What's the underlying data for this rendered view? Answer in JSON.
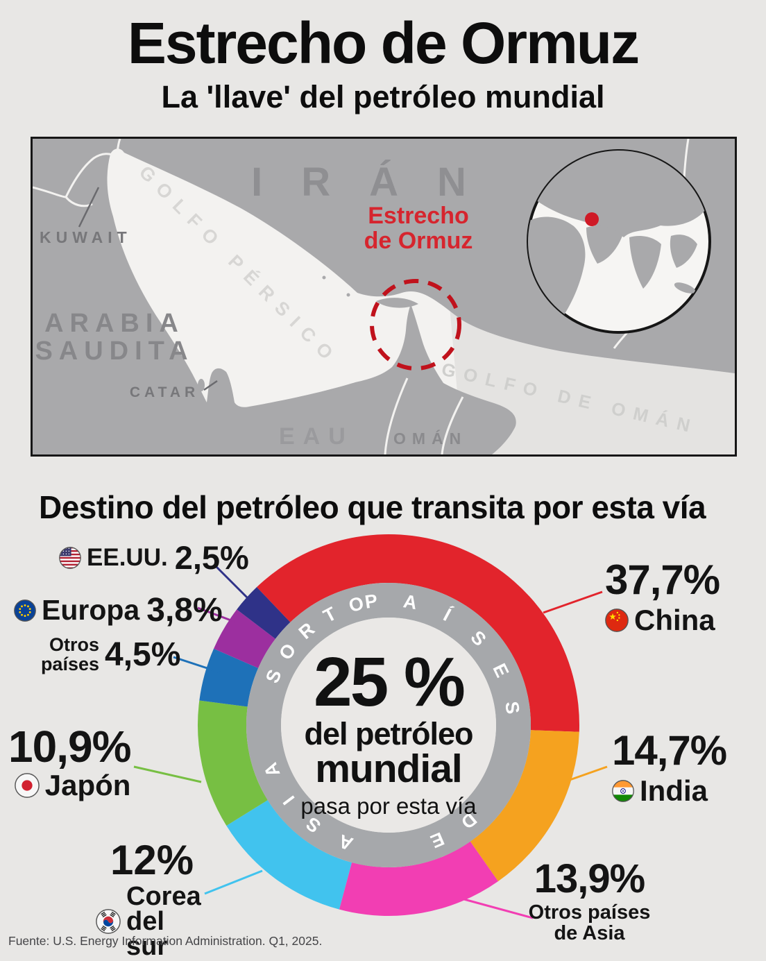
{
  "header": {
    "title": "Estrecho de Ormuz",
    "subtitle": "La 'llave' del petróleo mundial"
  },
  "map": {
    "countries": {
      "iran": "IRÁN",
      "kuwait": "KUWAIT",
      "arabia_line1": "ARABIA",
      "arabia_line2": "SAUDITA",
      "catar": "CATAR",
      "eau": "EAU",
      "oman": "OMÁN"
    },
    "seas": {
      "persian_gulf": "GOLFO PÉRSICO",
      "gulf_of_oman": "GOLFO DE OMÁN"
    },
    "strait_label_line1": "Estrecho",
    "strait_label_line2": "de Ormuz",
    "colors": {
      "land": "#a9a9ab",
      "sea": "#f3f2f0",
      "strait_red": "#d6252e",
      "dashed_circle_red": "#c0121c",
      "globe_marker_red": "#cf1a26"
    }
  },
  "section": {
    "title": "Destino del petróleo que transita por esta vía"
  },
  "chart_data": {
    "type": "donut",
    "title": "Destino del petróleo que transita por esta vía",
    "unit": "percent",
    "start_angle_deg": -43.7,
    "center": {
      "headline": "25 %",
      "line1": "del petróleo",
      "line2": "mundial",
      "line3": "pasa por esta vía"
    },
    "ring_labels": {
      "asia_group": "PAÍSES DE ASIA",
      "others_group": "OTROS"
    },
    "ring_color": "#a6a8ab",
    "series": [
      {
        "label": "China",
        "value": 37.7,
        "display": "37,7%",
        "color": "#e2242c",
        "flag": "china"
      },
      {
        "label": "India",
        "value": 14.7,
        "display": "14,7%",
        "color": "#f5a21f",
        "flag": "india"
      },
      {
        "label": "Otros países de Asia",
        "value": 13.9,
        "display": "13,9%",
        "color": "#f23eb3",
        "flag": null
      },
      {
        "label": "Corea del sur",
        "value": 12,
        "display": "12%",
        "color": "#41c3ee",
        "flag": "south-korea"
      },
      {
        "label": "Japón",
        "value": 10.9,
        "display": "10,9%",
        "color": "#77bf43",
        "flag": "japan"
      },
      {
        "label": "Otros países",
        "value": 4.5,
        "display": "4,5%",
        "color": "#1e71b8",
        "flag": null
      },
      {
        "label": "Europa",
        "value": 3.8,
        "display": "3,8%",
        "color": "#9c2f9f",
        "flag": "eu"
      },
      {
        "label": "EE.UU.",
        "value": 2.5,
        "display": "2,5%",
        "color": "#2f3288",
        "flag": "us"
      }
    ]
  },
  "footer": {
    "source": "Fuente: U.S. Energy Information Administration. Q1, 2025."
  }
}
